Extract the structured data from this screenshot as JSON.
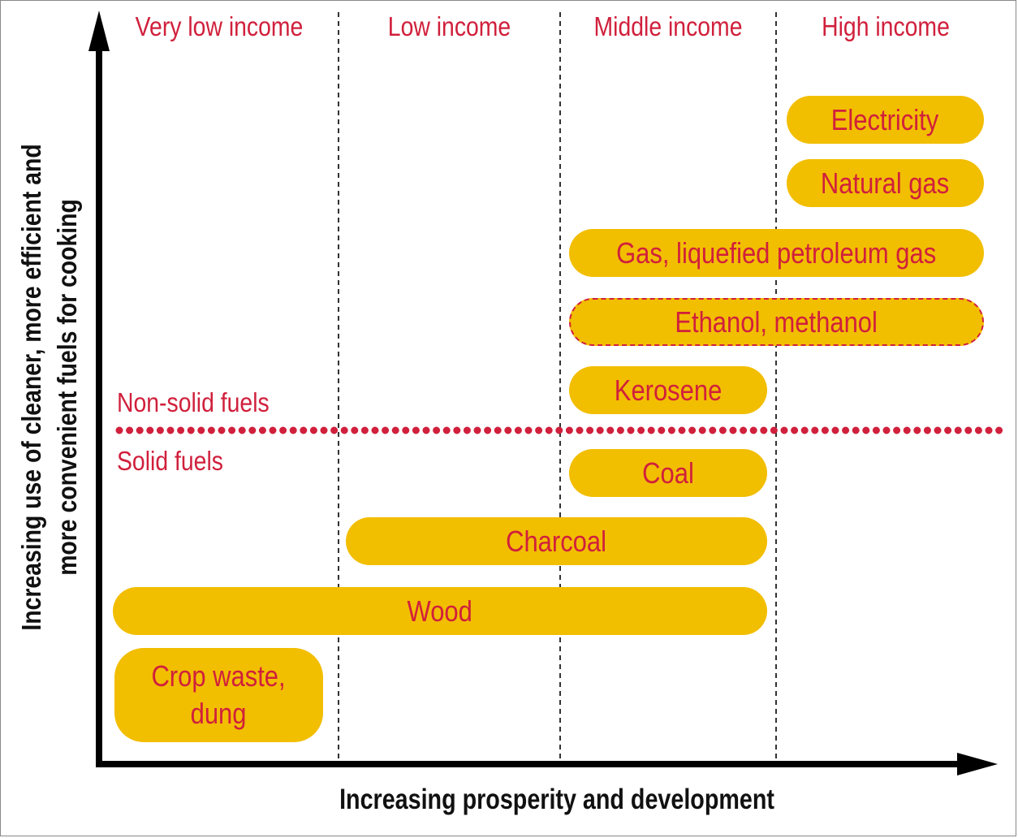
{
  "columns": [
    {
      "label": "Very low income"
    },
    {
      "label": "Low income"
    },
    {
      "label": "Middle income"
    },
    {
      "label": "High income"
    }
  ],
  "zones": {
    "upper": "Non-solid fuels",
    "lower": "Solid fuels"
  },
  "fuels": [
    {
      "name": "Electricity",
      "group": "non-solid",
      "from_column": 4,
      "to_column": 4,
      "style": "solid"
    },
    {
      "name": "Natural gas",
      "group": "non-solid",
      "from_column": 4,
      "to_column": 4,
      "style": "solid"
    },
    {
      "name": "Gas, liquefied petroleum gas",
      "group": "non-solid",
      "from_column": 3,
      "to_column": 4,
      "style": "solid"
    },
    {
      "name": "Ethanol, methanol",
      "group": "non-solid",
      "from_column": 3,
      "to_column": 4,
      "style": "dashed"
    },
    {
      "name": "Kerosene",
      "group": "non-solid",
      "from_column": 3,
      "to_column": 3,
      "style": "solid"
    },
    {
      "name": "Coal",
      "group": "solid",
      "from_column": 3,
      "to_column": 3,
      "style": "solid"
    },
    {
      "name": "Charcoal",
      "group": "solid",
      "from_column": 2,
      "to_column": 3,
      "style": "solid"
    },
    {
      "name": "Wood",
      "group": "solid",
      "from_column": 1,
      "to_column": 3,
      "style": "solid"
    },
    {
      "name": "Crop waste, dung",
      "lines": [
        "Crop waste,",
        "dung"
      ],
      "group": "solid",
      "from_column": 1,
      "to_column": 1,
      "style": "solid"
    }
  ],
  "axes": {
    "x_label": "Increasing prosperity and development",
    "y_label_line1": "Increasing use of cleaner, more efficient and",
    "y_label_line2": "more convenient fuels for cooking"
  },
  "colors": {
    "pill_fill": "#f2be00",
    "text_red": "#d0203c",
    "separator_red": "#d0203c",
    "axis": "#000000"
  }
}
